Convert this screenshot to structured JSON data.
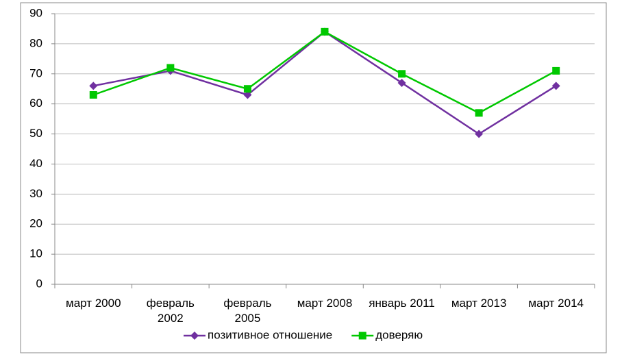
{
  "chart_data": {
    "type": "line",
    "categories": [
      "март 2000",
      "февраль 2002",
      "февраль 2005",
      "март 2008",
      "январь 2011",
      "март 2013",
      "март 2014"
    ],
    "series": [
      {
        "name": "позитивное отношение",
        "color": "#7030a0",
        "marker": "diamond",
        "values": [
          66,
          71,
          63,
          84,
          67,
          50,
          66
        ]
      },
      {
        "name": "доверяю",
        "color": "#00c800",
        "marker": "square",
        "values": [
          63,
          72,
          65,
          84,
          70,
          57,
          71
        ]
      }
    ],
    "ylim": [
      0,
      90
    ],
    "yticks": [
      0,
      10,
      20,
      30,
      40,
      50,
      60,
      70,
      80,
      90
    ],
    "grid": true,
    "legend": "bottom"
  }
}
